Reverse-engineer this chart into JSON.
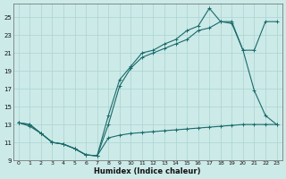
{
  "xlabel": "Humidex (Indice chaleur)",
  "xlim": [
    -0.5,
    23.5
  ],
  "ylim": [
    9,
    26.5
  ],
  "xticks": [
    0,
    1,
    2,
    3,
    4,
    5,
    6,
    7,
    8,
    9,
    10,
    11,
    12,
    13,
    14,
    15,
    16,
    17,
    18,
    19,
    20,
    21,
    22,
    23
  ],
  "yticks": [
    9,
    11,
    13,
    15,
    17,
    19,
    21,
    23,
    25
  ],
  "bg_color": "#cceae8",
  "grid_color": "#aad4d2",
  "line_color": "#1a6b6b",
  "line1_x": [
    0,
    1,
    2,
    3,
    4,
    5,
    6,
    7,
    8,
    9,
    10,
    11,
    12,
    13,
    14,
    15,
    16,
    17,
    18,
    19,
    20,
    21,
    22,
    23
  ],
  "line1_y": [
    13.2,
    12.8,
    12.0,
    11.0,
    10.8,
    10.3,
    9.6,
    9.5,
    11.5,
    11.8,
    12.0,
    12.1,
    12.2,
    12.3,
    12.4,
    12.5,
    12.6,
    12.7,
    12.8,
    12.9,
    13.0,
    13.0,
    13.0,
    13.0
  ],
  "line2_x": [
    0,
    1,
    2,
    3,
    4,
    5,
    6,
    7,
    8,
    9,
    10,
    11,
    12,
    13,
    14,
    15,
    16,
    17,
    18,
    19,
    20,
    21,
    22,
    23
  ],
  "line2_y": [
    13.2,
    13.0,
    12.0,
    11.0,
    10.8,
    10.3,
    9.6,
    9.5,
    14.0,
    18.0,
    19.5,
    21.0,
    21.3,
    22.0,
    22.5,
    23.5,
    24.0,
    26.0,
    24.5,
    24.3,
    21.3,
    16.8,
    14.0,
    13.0
  ],
  "line3_x": [
    0,
    1,
    2,
    3,
    4,
    5,
    6,
    7,
    8,
    9,
    10,
    11,
    12,
    13,
    14,
    15,
    16,
    17,
    18,
    19,
    20,
    21,
    22,
    23
  ],
  "line3_y": [
    13.2,
    13.0,
    12.0,
    11.0,
    10.8,
    10.3,
    9.6,
    9.5,
    13.0,
    17.3,
    19.3,
    20.5,
    21.0,
    21.5,
    22.0,
    22.5,
    23.5,
    23.8,
    24.5,
    24.5,
    21.3,
    21.3,
    24.5,
    24.5
  ]
}
